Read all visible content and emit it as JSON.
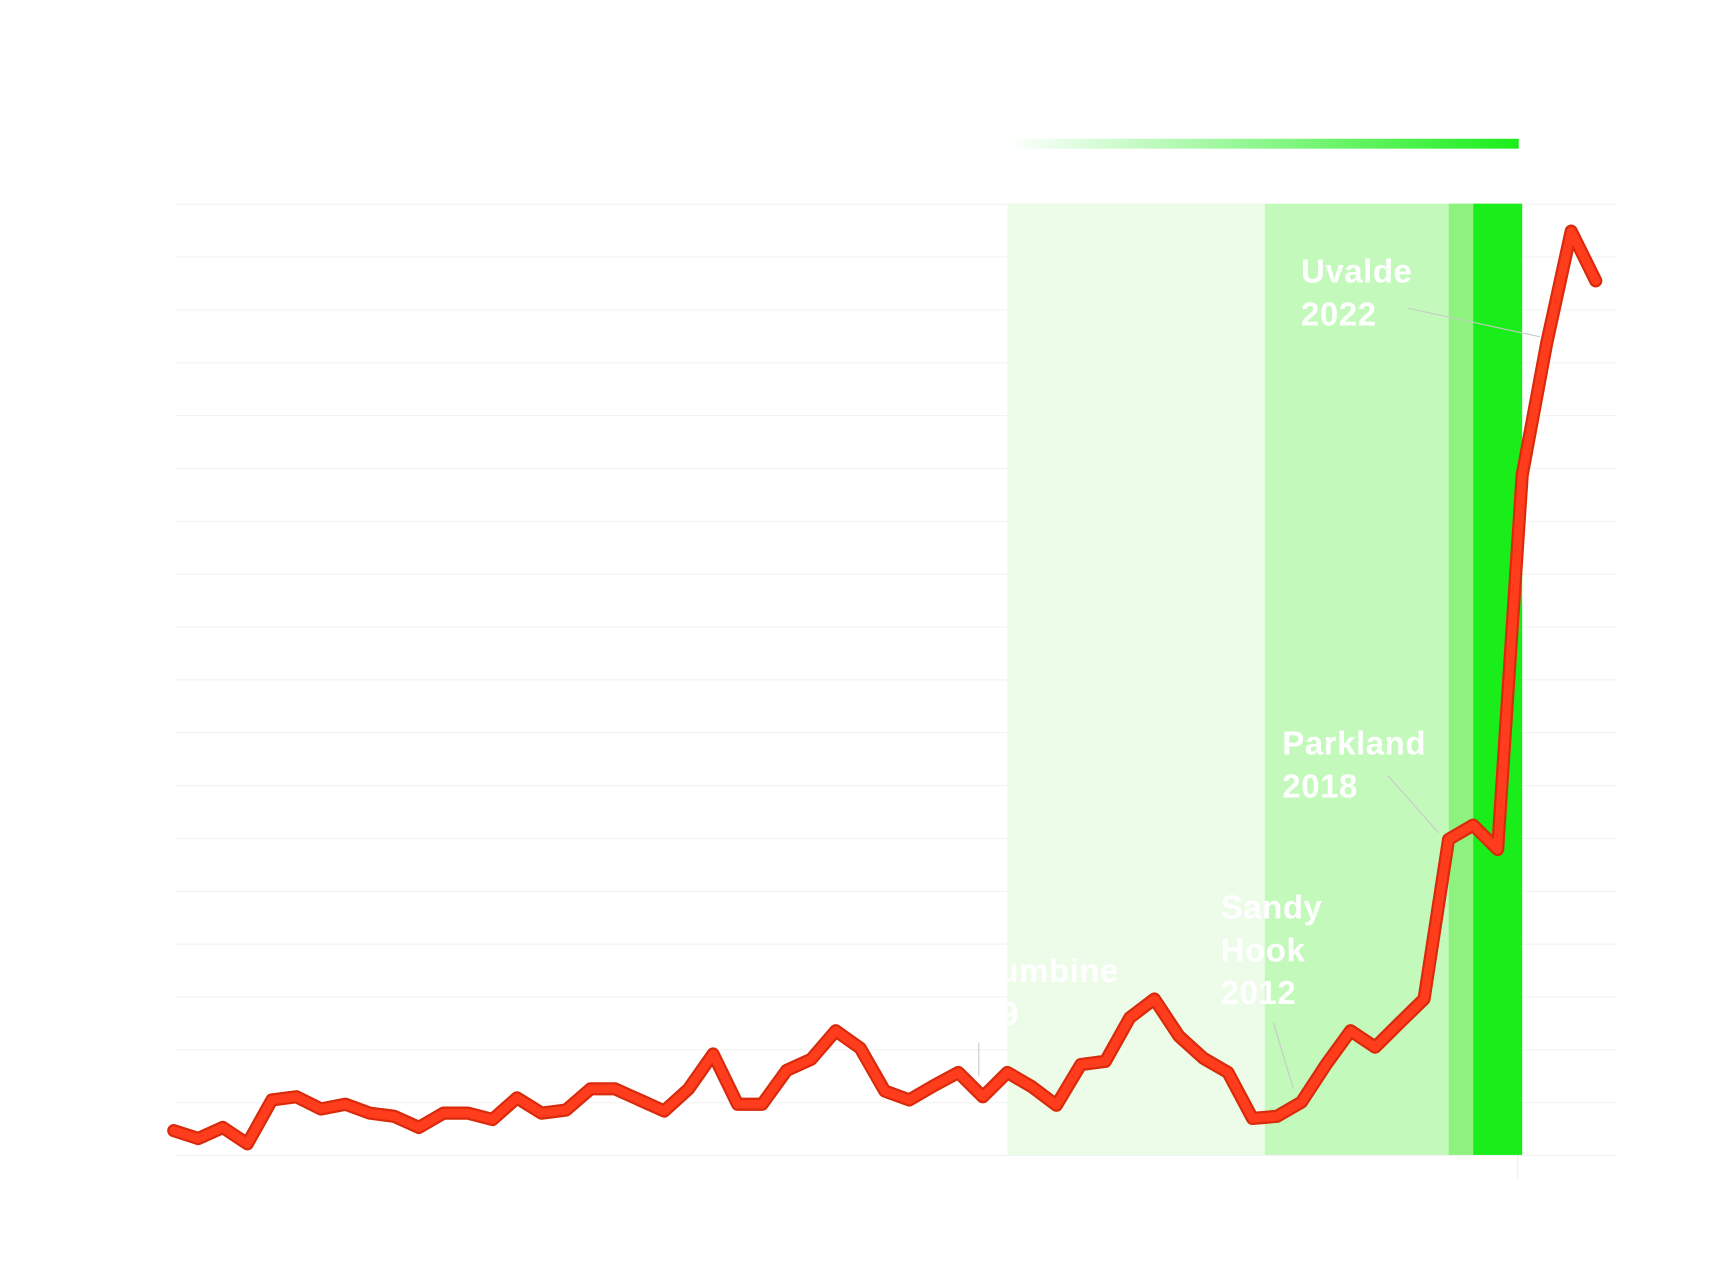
{
  "chart_data": {
    "type": "line",
    "x": [
      1966,
      1967,
      1968,
      1969,
      1970,
      1971,
      1972,
      1973,
      1974,
      1975,
      1976,
      1977,
      1978,
      1979,
      1980,
      1981,
      1982,
      1983,
      1984,
      1985,
      1986,
      1987,
      1988,
      1989,
      1990,
      1991,
      1992,
      1993,
      1994,
      1995,
      1996,
      1997,
      1998,
      1999,
      2000,
      2001,
      2002,
      2003,
      2004,
      2005,
      2006,
      2007,
      2008,
      2009,
      2010,
      2011,
      2012,
      2013,
      2014,
      2015,
      2016,
      2017,
      2018,
      2019,
      2020,
      2021,
      2022,
      2023,
      2024
    ],
    "series": [
      {
        "color": "#ff3c1c",
        "values": [
          0.46,
          0.31,
          0.52,
          0.21,
          1.04,
          1.1,
          0.87,
          0.96,
          0.79,
          0.73,
          0.52,
          0.79,
          0.79,
          0.67,
          1.08,
          0.79,
          0.85,
          1.25,
          1.25,
          1.04,
          0.83,
          1.25,
          1.91,
          0.96,
          0.96,
          1.6,
          1.81,
          2.35,
          2.02,
          1.21,
          1.04,
          1.31,
          1.56,
          1.1,
          1.56,
          1.29,
          0.94,
          1.71,
          1.77,
          2.6,
          2.95,
          2.25,
          1.83,
          1.56,
          0.69,
          0.73,
          1.0,
          1.71,
          2.35,
          2.04,
          2.5,
          2.95,
          5.97,
          6.24,
          5.78,
          12.86,
          15.36,
          17.48,
          16.54
        ]
      }
    ],
    "xlim": [
      1966,
      2024
    ],
    "ylim": [
      0,
      18
    ],
    "bands": [
      {
        "start": 2000,
        "end": 2010.5,
        "color": "#edfce9"
      },
      {
        "start": 2010.5,
        "end": 2018,
        "color": "#c3fabb"
      },
      {
        "start": 2018,
        "end": 2019,
        "color": "#8ef27f"
      },
      {
        "start": 2019,
        "end": 2021,
        "color": "#1aee1a"
      }
    ],
    "annotations": [
      {
        "lines": [
          "Columbine",
          "1999"
        ]
      },
      {
        "lines": [
          "Sandy",
          "Hook",
          "2012"
        ]
      },
      {
        "lines": [
          "Parkland",
          "2018"
        ]
      },
      {
        "lines": [
          "Uvalde",
          "2022"
        ]
      }
    ]
  }
}
